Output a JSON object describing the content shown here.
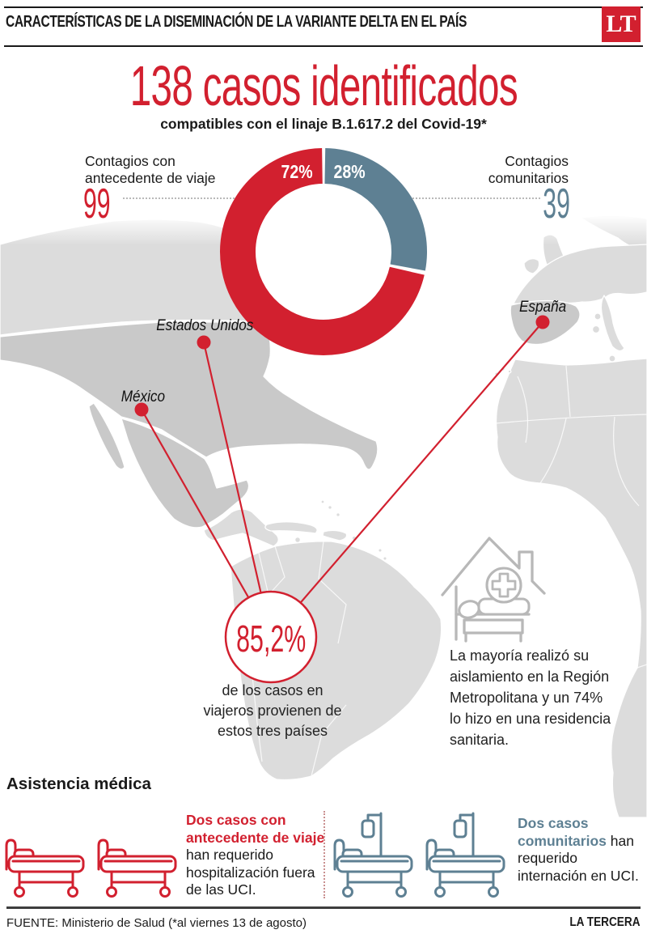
{
  "colors": {
    "red": "#d2202f",
    "blue": "#5e8093",
    "map_land": "#dcdcdc",
    "map_highlight": "#c9c9c9",
    "icon_gray": "#b8b8b8"
  },
  "header": {
    "title": "CARACTERÍSTICAS DE LA DISEMINACIÓN DE LA VARIANTE DELTA EN EL PAÍS",
    "logo": "LT"
  },
  "hero": {
    "title": "138 casos identificados",
    "subtitle": "compatibles con el linaje B.1.617.2 del Covid-19*"
  },
  "chart_data": {
    "type": "pie",
    "title": "138 casos identificados",
    "subtitle": "compatibles con el linaje B.1.617.2 del Covid-19*",
    "categories": [
      "Contagios con antecedente de viaje",
      "Contagios comunitarios"
    ],
    "values": [
      99,
      39
    ],
    "percent_labels": [
      "72%",
      "28%"
    ],
    "colors": [
      "#d2202f",
      "#5e8093"
    ],
    "legend_position": "sides"
  },
  "legend": {
    "left": {
      "lines": [
        "Contagios con",
        "antecedente de viaje"
      ],
      "value": "99"
    },
    "right": {
      "lines": [
        "Contagios",
        "comunitarios"
      ],
      "value": "39"
    }
  },
  "map": {
    "labels": {
      "usa": "Estados Unidos",
      "mexico": "México",
      "spain": "España"
    }
  },
  "highlight": {
    "value": "85,2%",
    "caption_lines": [
      "de los casos en",
      "viajeros provienen de",
      "estos tres países"
    ]
  },
  "isolation": {
    "lines": [
      "La mayoría realizó su",
      "aislamiento en la Región",
      "Metropolitana y un 74%",
      "lo hizo en una residencia",
      "sanitaria."
    ]
  },
  "assistance": {
    "heading": "Asistencia médica",
    "travel": {
      "bold": "Dos casos con antecedente de viaje",
      "rest": " han requerido hospitalización fuera de las UCI."
    },
    "community": {
      "bold": "Dos casos comunitarios",
      "rest": " han requerido internación en UCI."
    }
  },
  "footer": {
    "source": "FUENTE: Ministerio de Salud (*al viernes 13 de agosto)",
    "brand": "LA TERCERA"
  }
}
